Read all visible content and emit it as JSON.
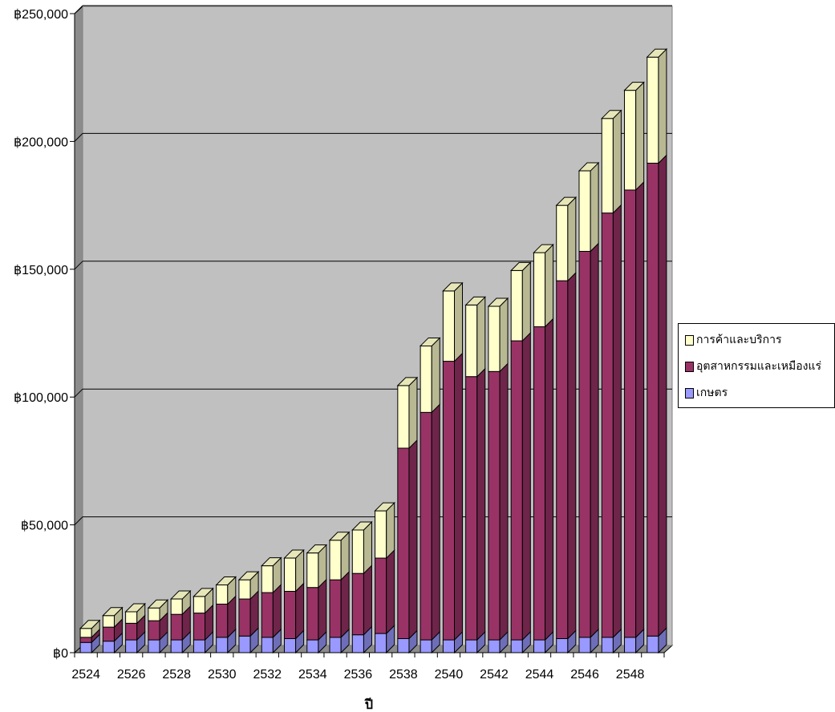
{
  "chart_data": {
    "type": "bar",
    "stacked": true,
    "three_d": true,
    "x": [
      2524,
      2525,
      2526,
      2527,
      2528,
      2529,
      2530,
      2531,
      2532,
      2533,
      2534,
      2535,
      2536,
      2537,
      2538,
      2539,
      2540,
      2541,
      2542,
      2543,
      2544,
      2545,
      2546,
      2547,
      2548,
      2549
    ],
    "xlabel": "ปี",
    "x_tick_labels": [
      "2524",
      "2526",
      "2528",
      "2530",
      "2532",
      "2534",
      "2536",
      "2538",
      "2540",
      "2542",
      "2544",
      "2546",
      "2548"
    ],
    "y_tick_labels": [
      "฿0",
      "฿50,000",
      "฿100,000",
      "฿150,000",
      "฿200,000",
      "฿250,000"
    ],
    "ylim": [
      0,
      250000
    ],
    "grid": true,
    "legend_position": "right",
    "series": [
      {
        "name": "เกษตร",
        "color": "#9999ff",
        "values": [
          4000,
          4500,
          5000,
          5000,
          5000,
          5000,
          6000,
          6500,
          6000,
          5500,
          5000,
          6000,
          7000,
          7500,
          5500,
          5000,
          5000,
          5000,
          5000,
          5000,
          5000,
          5500,
          6000,
          6000,
          6000,
          6500
        ]
      },
      {
        "name": "อุตสาหกรรมและเหมืองแร่",
        "color": "#993366",
        "values": [
          2000,
          5500,
          6500,
          7500,
          10000,
          10500,
          13000,
          14500,
          17500,
          18500,
          20500,
          22500,
          24000,
          29500,
          74500,
          89000,
          109000,
          103000,
          105000,
          117000,
          122500,
          140000,
          151000,
          166000,
          175000,
          185000
        ]
      },
      {
        "name": "การค้าและบริการ",
        "color": "#ffffcc",
        "values": [
          3500,
          4500,
          4500,
          5000,
          6000,
          6500,
          7500,
          7500,
          10500,
          13000,
          13500,
          15500,
          17000,
          18500,
          24500,
          26000,
          27500,
          28000,
          25500,
          27500,
          29000,
          29500,
          31500,
          37000,
          39000,
          41500
        ]
      }
    ]
  }
}
